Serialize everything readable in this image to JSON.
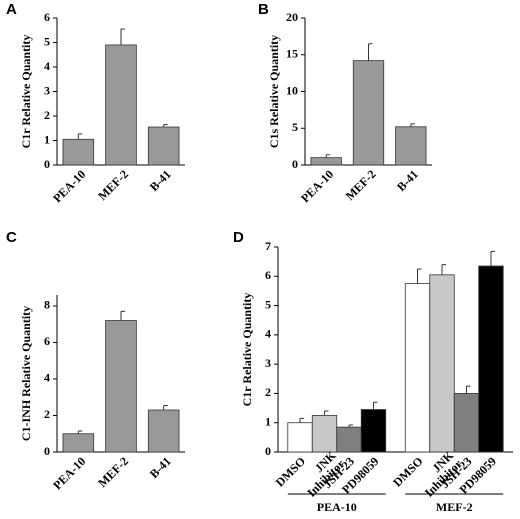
{
  "chart_data": [
    {
      "type": "bar",
      "panel": "A",
      "ylabel": "C1r Relative Quantity",
      "categories": [
        "PEA-10",
        "MEF-2",
        "B-41"
      ],
      "values": [
        1.05,
        4.9,
        1.55
      ],
      "errors": [
        0.22,
        0.65,
        0.1
      ],
      "color": "#999999",
      "ylim": [
        0,
        6
      ],
      "yticks": [
        0,
        1,
        2,
        3,
        4,
        5,
        6
      ]
    },
    {
      "type": "bar",
      "panel": "B",
      "ylabel": "C1s Relative Quantity",
      "categories": [
        "PEA-10",
        "MEF-2",
        "B-41"
      ],
      "values": [
        1.0,
        14.2,
        5.2
      ],
      "errors": [
        0.4,
        2.3,
        0.4
      ],
      "color": "#999999",
      "ylim": [
        0,
        20
      ],
      "yticks": [
        0,
        5,
        10,
        15,
        20
      ]
    },
    {
      "type": "bar",
      "panel": "C",
      "ylabel": "C1-INH Relative Quantity",
      "categories": [
        "PEA-10",
        "MEF-2",
        "B-41"
      ],
      "values": [
        1.0,
        7.2,
        2.3
      ],
      "errors": [
        0.15,
        0.5,
        0.25
      ],
      "color": "#999999",
      "ylim": [
        0,
        8.6
      ],
      "yticks": [
        0,
        2,
        4,
        6,
        8
      ]
    },
    {
      "type": "grouped_bar",
      "panel": "D",
      "ylabel": "C1r Relative Quantity",
      "groups": [
        "PEA-10",
        "MEF-2"
      ],
      "series": [
        {
          "name": "DMSO",
          "color": "#ffffff",
          "values": [
            1.0,
            5.75
          ],
          "errors": [
            0.15,
            0.5
          ]
        },
        {
          "name": "JNK Inhibitor",
          "color": "#c8c8c8",
          "values": [
            1.25,
            6.05
          ],
          "errors": [
            0.15,
            0.35
          ]
        },
        {
          "name": "JSH-23",
          "color": "#808080",
          "values": [
            0.85,
            2.0
          ],
          "errors": [
            0.07,
            0.25
          ]
        },
        {
          "name": "PD98059",
          "color": "#000000",
          "values": [
            1.45,
            6.35
          ],
          "errors": [
            0.25,
            0.5
          ]
        }
      ],
      "ylim": [
        0,
        7
      ],
      "yticks": [
        0,
        1,
        2,
        3,
        4,
        5,
        6,
        7
      ]
    }
  ]
}
